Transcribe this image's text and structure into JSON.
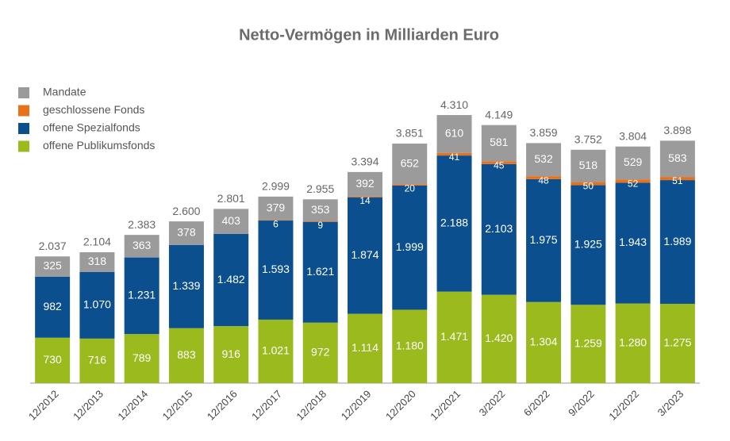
{
  "chart_data": {
    "type": "stacked_bar",
    "title": "Netto-Vermögen in Milliarden Euro",
    "categories": [
      "12/2012",
      "12/2013",
      "12/2014",
      "12/2015",
      "12/2016",
      "12/2017",
      "12/2018",
      "12/2019",
      "12/2020",
      "12/2021",
      "3/2022",
      "6/2022",
      "9/2022",
      "12/2022",
      "3/2023"
    ],
    "series": [
      {
        "name": "offene Publikumsfonds",
        "color": "#9aba1e",
        "values": [
          730,
          716,
          789,
          883,
          916,
          1021,
          972,
          1114,
          1180,
          1471,
          1420,
          1304,
          1259,
          1280,
          1275
        ],
        "value_labels": [
          "730",
          "716",
          "789",
          "883",
          "916",
          "1.021",
          "972",
          "1.114",
          "1.180",
          "1.471",
          "1.420",
          "1.304",
          "1.259",
          "1.280",
          "1.275"
        ]
      },
      {
        "name": "offene Spezialfonds",
        "color": "#0b4f8e",
        "values": [
          982,
          1070,
          1231,
          1339,
          1482,
          1593,
          1621,
          1874,
          1999,
          2188,
          2103,
          1975,
          1925,
          1943,
          1989
        ],
        "value_labels": [
          "982",
          "1.070",
          "1.231",
          "1.339",
          "1.482",
          "1.593",
          "1.621",
          "1.874",
          "1.999",
          "2.188",
          "2.103",
          "1.975",
          "1.925",
          "1.943",
          "1.989"
        ]
      },
      {
        "name": "geschlossene Fonds",
        "color": "#e8711b",
        "values": [
          null,
          null,
          null,
          null,
          null,
          6,
          9,
          14,
          20,
          41,
          45,
          48,
          50,
          52,
          51
        ]
      },
      {
        "name": "Mandate",
        "color": "#9b9b9b",
        "values": [
          325,
          318,
          363,
          378,
          403,
          379,
          353,
          392,
          652,
          610,
          581,
          532,
          518,
          529,
          583
        ]
      }
    ],
    "totals": {
      "values": [
        2037,
        2104,
        2383,
        2600,
        2801,
        2999,
        2955,
        3394,
        3851,
        4310,
        4149,
        3859,
        3752,
        3804,
        3898
      ],
      "value_labels": [
        "2.037",
        "2.104",
        "2.383",
        "2.600",
        "2.801",
        "2.999",
        "2.955",
        "3.394",
        "3.851",
        "4.310",
        "4.149",
        "3.859",
        "3.752",
        "3.804",
        "3.898"
      ]
    },
    "ylim": [
      0,
      4400
    ],
    "legend": "top-left"
  }
}
